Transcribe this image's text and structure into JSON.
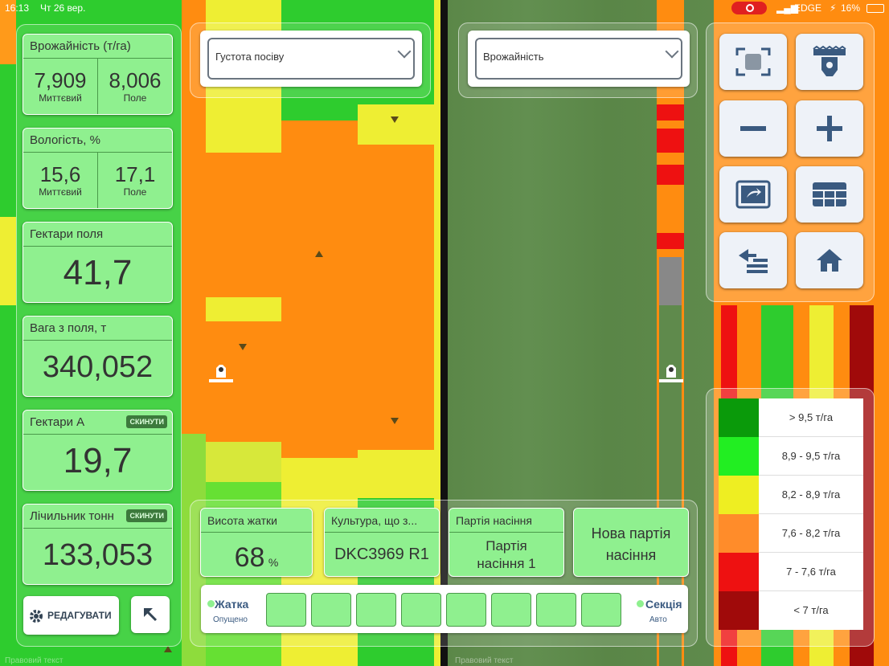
{
  "status": {
    "time": "16:13",
    "date": "Чт 26 вер.",
    "network": "EDGE",
    "battery": "16%"
  },
  "cards": [
    {
      "title": "Врожайність (т/га)",
      "left_value": "7,909",
      "left_sub": "Миттєвий",
      "right_value": "8,006",
      "right_sub": "Поле"
    },
    {
      "title": "Вологість, %",
      "left_value": "15,6",
      "left_sub": "Миттєвий",
      "right_value": "17,1",
      "right_sub": "Поле"
    },
    {
      "title": "Гектари поля",
      "value": "41,7"
    },
    {
      "title": "Вага з поля, т",
      "value": "340,052"
    },
    {
      "title": "Гектари А",
      "value": "19,7",
      "reset": "СКИНУТИ"
    },
    {
      "title": "Лічильник тонн",
      "value": "133,053",
      "reset": "СКИНУТИ"
    }
  ],
  "edit_button": "РЕДАГУВАТИ",
  "left_dropdown": "Густота посіву",
  "right_dropdown": "Врожайність",
  "bottom": {
    "header_height": {
      "title": "Висота жатки",
      "value": "68",
      "unit": "%"
    },
    "crop": {
      "title": "Культура, що з...",
      "value": "DKC3969 R1"
    },
    "seed_batch": {
      "title": "Партія насіння",
      "value": "Партія насіння 1"
    },
    "new_batch": "Нова партія насіння"
  },
  "sections": {
    "left_label": "Жатка",
    "left_sub": "Опущено",
    "right_label": "Секція",
    "right_sub": "Авто",
    "count": 8
  },
  "legend": [
    {
      "label": "> 9,5 т/га",
      "color": "#0a9a0a"
    },
    {
      "label": "8,9 - 9,5 т/га",
      "color": "#22ee22"
    },
    {
      "label": "8,2 - 8,9 т/га",
      "color": "#eeee22"
    },
    {
      "label": "7,6 - 8,2 т/га",
      "color": "#ff8c2a"
    },
    {
      "label": "7 - 7,6 т/га",
      "color": "#ee1111"
    },
    {
      "label": "< 7 т/га",
      "color": "#a00a0a"
    }
  ],
  "footer_left": "Правовий текст",
  "footer_right": "Правовий текст"
}
